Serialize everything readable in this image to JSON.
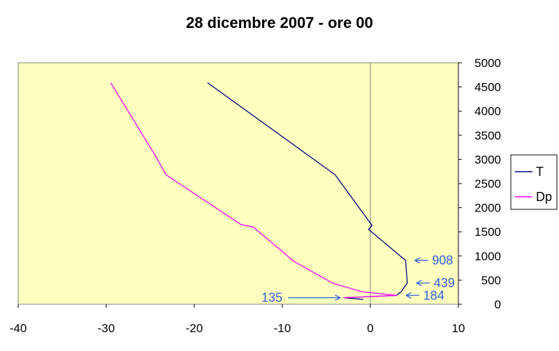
{
  "chart_data": {
    "type": "line",
    "title": "28 dicembre 2007 - ore 00",
    "xlabel": "",
    "ylabel": "",
    "xlim": [
      -40,
      10
    ],
    "ylim": [
      0,
      5000
    ],
    "xticks": [
      -40,
      -30,
      -20,
      -10,
      0,
      10
    ],
    "yticks": [
      0,
      500,
      1000,
      1500,
      2000,
      2500,
      3000,
      3500,
      4000,
      4500,
      5000
    ],
    "plot_background": "#ffffc0",
    "grid": false,
    "legend_position": "right",
    "series": [
      {
        "name": "T",
        "color": "#000080",
        "points": [
          {
            "x": -0.8,
            "y": 100
          },
          {
            "x": -3.0,
            "y": 135
          },
          {
            "x": 3.0,
            "y": 184
          },
          {
            "x": 3.2,
            "y": 220
          },
          {
            "x": 3.5,
            "y": 260
          },
          {
            "x": 4.2,
            "y": 439
          },
          {
            "x": 4.0,
            "y": 908
          },
          {
            "x": -0.2,
            "y": 1550
          },
          {
            "x": 0.2,
            "y": 1630
          },
          {
            "x": -4.0,
            "y": 2680
          },
          {
            "x": -18.5,
            "y": 4590
          }
        ]
      },
      {
        "name": "Dp",
        "color": "#ff00ff",
        "points": [
          {
            "x": -3.0,
            "y": 135
          },
          {
            "x": 3.0,
            "y": 184
          },
          {
            "x": -1.0,
            "y": 260
          },
          {
            "x": -4.3,
            "y": 439
          },
          {
            "x": -8.3,
            "y": 850
          },
          {
            "x": -8.7,
            "y": 890
          },
          {
            "x": -13.3,
            "y": 1600
          },
          {
            "x": -14.7,
            "y": 1650
          },
          {
            "x": -23.2,
            "y": 2680
          },
          {
            "x": -24.5,
            "y": 3100
          },
          {
            "x": -29.5,
            "y": 4590
          }
        ]
      }
    ],
    "annotations": [
      {
        "text": "908",
        "x": 4.0,
        "y": 908,
        "side": "right",
        "color": "#3060e0"
      },
      {
        "text": "439",
        "x": 4.2,
        "y": 439,
        "side": "right",
        "color": "#3060e0"
      },
      {
        "text": "184",
        "x": 3.0,
        "y": 184,
        "side": "right",
        "color": "#3060e0"
      },
      {
        "text": "135",
        "x": -3.0,
        "y": 135,
        "side": "left",
        "color": "#3060e0"
      }
    ]
  }
}
